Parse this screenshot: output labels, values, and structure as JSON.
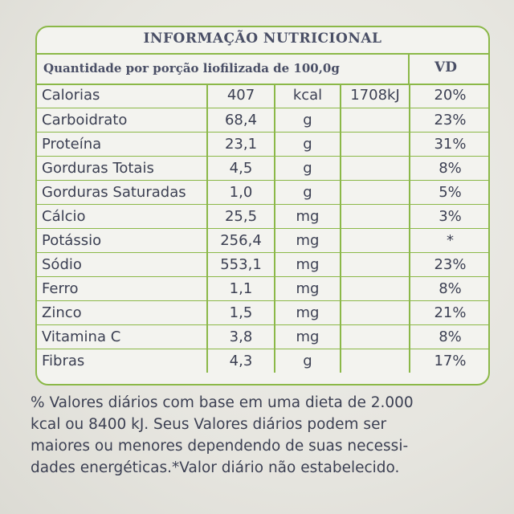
{
  "label": {
    "title": "INFORMAÇÃO NUTRICIONAL",
    "serving_header": "Quantidade por porção liofilizada de 100,0g",
    "vd_header": "VD"
  },
  "nutrients": [
    {
      "name": "Calorias",
      "value": "407",
      "unit": "kcal",
      "kj": "1708kJ",
      "vd": "20%"
    },
    {
      "name": "Carboidrato",
      "value": "68,4",
      "unit": "g",
      "kj": "",
      "vd": "23%"
    },
    {
      "name": "Proteína",
      "value": "23,1",
      "unit": "g",
      "kj": "",
      "vd": "31%"
    },
    {
      "name": "Gorduras Totais",
      "value": "4,5",
      "unit": "g",
      "kj": "",
      "vd": "8%"
    },
    {
      "name": "Gorduras Saturadas",
      "value": "1,0",
      "unit": "g",
      "kj": "",
      "vd": "5%"
    },
    {
      "name": "Cálcio",
      "value": "25,5",
      "unit": "mg",
      "kj": "",
      "vd": "3%"
    },
    {
      "name": "Potássio",
      "value": "256,4",
      "unit": "mg",
      "kj": "",
      "vd": "*"
    },
    {
      "name": "Sódio",
      "value": "553,1",
      "unit": "mg",
      "kj": "",
      "vd": "23%"
    },
    {
      "name": "Ferro",
      "value": "1,1",
      "unit": "mg",
      "kj": "",
      "vd": "8%"
    },
    {
      "name": "Zinco",
      "value": "1,5",
      "unit": "mg",
      "kj": "",
      "vd": "21%"
    },
    {
      "name": "Vitamina C",
      "value": "3,8",
      "unit": "mg",
      "kj": "",
      "vd": "8%"
    },
    {
      "name": "Fibras",
      "value": "4,3",
      "unit": "g",
      "kj": "",
      "vd": "17%"
    }
  ],
  "footnote": {
    "lines": [
      "% Valores diários com base em uma dieta de 2.000",
      "kcal ou 8400 kJ. Seus Valores diários podem ser",
      "maiores ou menores dependendo de suas necessi-",
      "dades energéticas.*Valor diário não estabelecido."
    ]
  },
  "colors": {
    "border_green": "#8bb848",
    "text": "#3b3f52",
    "heading": "#4a4f66"
  }
}
